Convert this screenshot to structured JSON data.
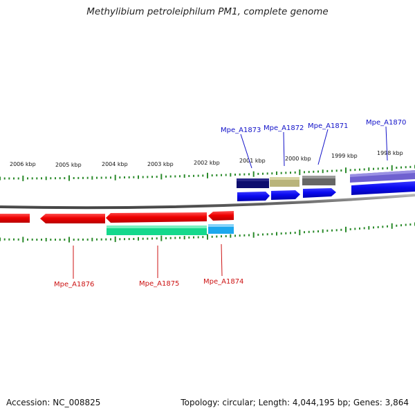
{
  "title": "Methylibium petroleiphilum PM1, complete genome",
  "footer": {
    "accession": "Accession: NC_008825",
    "summary": "Topology: circular; Length: 4,044,195 bp; Genes: 3,864"
  },
  "scale_labels": [
    "2006 kbp",
    "2005 kbp",
    "2004 kbp",
    "2003 kbp",
    "2002 kbp",
    "2001 kbp",
    "2000 kbp",
    "1999 kbp",
    "1998 kbp"
  ],
  "genes_forward": [
    {
      "label": "Mpe_A1873",
      "color": "#1010c8"
    },
    {
      "label": "Mpe_A1872",
      "color": "#1010c8"
    },
    {
      "label": "Mpe_A1871",
      "color": "#1010c8"
    },
    {
      "label": "Mpe_A1870",
      "color": "#1010c8"
    }
  ],
  "genes_reverse": [
    {
      "label": "Mpe_A1876",
      "color": "#cc1111"
    },
    {
      "label": "Mpe_A1875",
      "color": "#cc1111"
    },
    {
      "label": "Mpe_A1874",
      "color": "#cc1111"
    }
  ],
  "colors": {
    "forward_arrow": "#0a0af0",
    "reverse_arrow": "#ee0000",
    "tick": "#2a8a2a",
    "backbone": "#777777",
    "feature_navy": "#0d0d6e",
    "feature_khaki": "#b9b47a",
    "feature_gray": "#666666",
    "feature_lavender": "#6f61d0",
    "feature_green": "#14d98c",
    "feature_sky": "#1ca8ee"
  }
}
